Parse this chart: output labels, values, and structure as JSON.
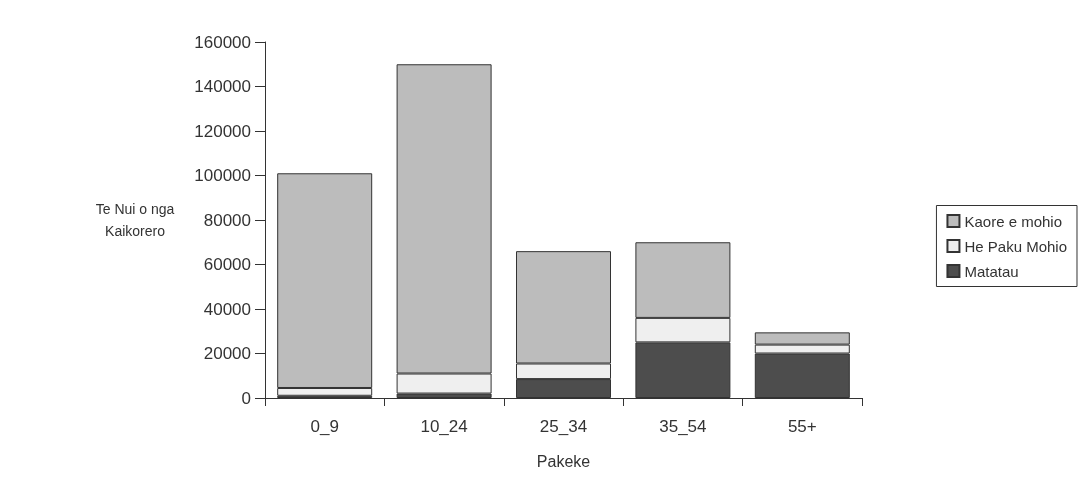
{
  "chart_data": {
    "type": "bar",
    "stacked": true,
    "xlabel": "Pakeke",
    "ylabel": "Te Nui o nga\nKaikorero",
    "categories": [
      "0_9",
      "10_24",
      "25_34",
      "35_54",
      "55+"
    ],
    "series": [
      {
        "name": "Matatau",
        "color": "#4d4d4d",
        "values": [
          1000,
          2000,
          8500,
          25000,
          20000
        ]
      },
      {
        "name": "He Paku Mohio",
        "color": "#efefef",
        "values": [
          3500,
          9000,
          7000,
          11000,
          4000
        ]
      },
      {
        "name": "Kaore e mohio",
        "color": "#bcbcbc",
        "values": [
          96500,
          139000,
          50500,
          34000,
          5500
        ]
      }
    ],
    "ylim": [
      0,
      160000
    ],
    "yticks": [
      0,
      20000,
      40000,
      60000,
      80000,
      100000,
      120000,
      140000,
      160000
    ],
    "grid": false,
    "legend": "right"
  }
}
